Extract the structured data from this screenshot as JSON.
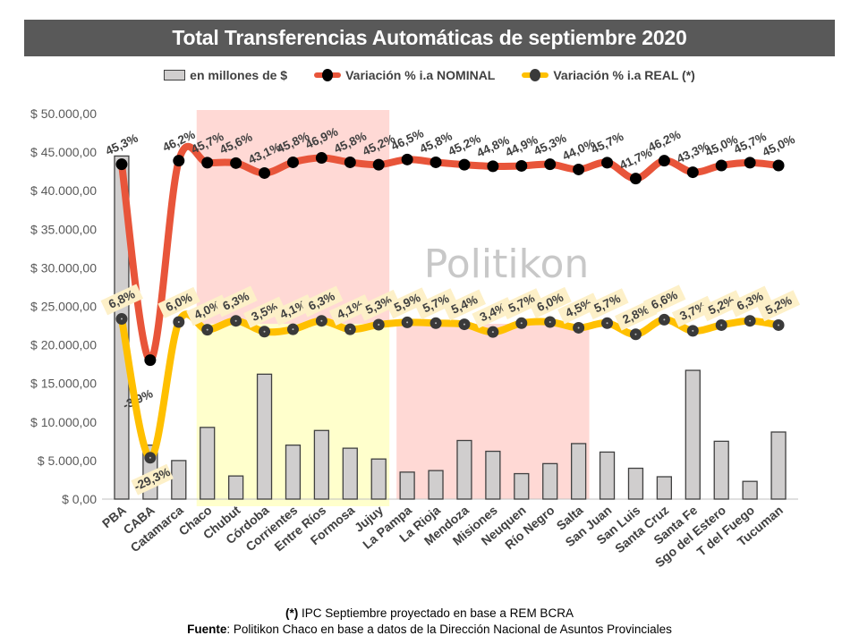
{
  "title": "Total Transferencias Automáticas de septiembre 2020",
  "watermark": "Politikon",
  "legend": [
    {
      "label": "en millones de $",
      "kind": "bar",
      "color": "#d0cece"
    },
    {
      "label": "Variación % i.a NOMINAL",
      "kind": "line",
      "color": "#e8553a",
      "marker": "#000000"
    },
    {
      "label": "Variación % i.a REAL (*)",
      "kind": "line",
      "color": "#ffc000",
      "marker": "#3a3a3a"
    }
  ],
  "footer": {
    "note_bold": "(*)",
    "note_text": " IPC Septiembre proyectado en base a REM BCRA",
    "source_bold": "Fuente",
    "source_text": ": Politikon Chaco en base a datos de la Dirección Nacional de Asuntos Provinciales"
  },
  "chart_data": {
    "type": "bar",
    "title": "Total Transferencias Automáticas de septiembre 2020",
    "xlabel": "",
    "ylabel": "",
    "ylim": [
      0,
      50000
    ],
    "yticks": [
      0,
      5000,
      10000,
      15000,
      20000,
      25000,
      30000,
      35000,
      40000,
      45000,
      50000
    ],
    "ytick_labels": [
      "$ 0,00",
      "$ 5.000,00",
      "$ 10.000,00",
      "$ 15.000,00",
      "$ 20.000,00",
      "$ 25.000,00",
      "$ 30.000,00",
      "$ 35.000,00",
      "$ 40.000,00",
      "$ 45.000,00",
      "$ 50.000,00"
    ],
    "grid": false,
    "legend_position": "top",
    "categories": [
      "PBA",
      "CABA",
      "Catamarca",
      "Chaco",
      "Chubut",
      "Córdoba",
      "Corrientes",
      "Entre Ríos",
      "Formosa",
      "Jujuy",
      "La Pampa",
      "La Rioja",
      "Mendoza",
      "Misiones",
      "Neuquen",
      "Río Negro",
      "Salta",
      "San Juan",
      "San Luis",
      "Santa Cruz",
      "Santa Fe",
      "Sgo del Estero",
      "T del Fuego",
      "Tucuman"
    ],
    "series": [
      {
        "name": "en millones de $",
        "type": "bar",
        "axis": "left",
        "values": [
          44500,
          7000,
          5000,
          9300,
          3000,
          16200,
          7000,
          8900,
          6600,
          5200,
          3500,
          3700,
          7600,
          6200,
          3300,
          4600,
          7200,
          6100,
          4000,
          2900,
          16700,
          7500,
          2300,
          8700
        ]
      },
      {
        "name": "Variación % i.a NOMINAL",
        "type": "line",
        "axis": "secondary",
        "values": [
          45.3,
          -3.9,
          46.2,
          45.7,
          45.6,
          43.1,
          45.8,
          46.9,
          45.8,
          45.2,
          46.5,
          45.8,
          45.2,
          44.8,
          44.9,
          45.3,
          44.0,
          45.7,
          41.7,
          46.2,
          43.3,
          45.0,
          45.7,
          45.0
        ],
        "labels": [
          "45,3%",
          "-3,9%",
          "46,2%",
          "45,7%",
          "45,6%",
          "43,1%",
          "45,8%",
          "46,9%",
          "45,8%",
          "45,2%",
          "46,5%",
          "45,8%",
          "45,2%",
          "44,8%",
          "44,9%",
          "45,3%",
          "44,0%",
          "45,7%",
          "41,7%",
          "46,2%",
          "43,3%",
          "45,0%",
          "45,7%",
          "45,0%"
        ]
      },
      {
        "name": "Variación % i.a REAL (*)",
        "type": "line",
        "axis": "secondary",
        "values": [
          6.8,
          -29.3,
          6.0,
          4.0,
          6.3,
          3.5,
          4.1,
          6.3,
          4.1,
          5.3,
          5.9,
          5.7,
          5.4,
          3.4,
          5.7,
          6.0,
          4.5,
          5.7,
          2.8,
          6.6,
          3.7,
          5.2,
          6.3,
          5.2
        ],
        "labels": [
          "6,8%",
          "-29,3%",
          "6,0%",
          "4,0%",
          "6,3%",
          "3,5%",
          "4,1%",
          "6,3%",
          "4,1%",
          "5,3%",
          "5,9%",
          "5,7%",
          "5,4%",
          "3,4%",
          "5,7%",
          "6,0%",
          "4,5%",
          "5,7%",
          "2,8%",
          "6,6%",
          "3,7%",
          "5,2%",
          "6,3%",
          "5,2%"
        ]
      }
    ],
    "highlight_bands": [
      {
        "from": "Chaco",
        "to": "Jujuy",
        "region": "upper",
        "color": "#ffd9d5"
      },
      {
        "from": "Chaco",
        "to": "Jujuy",
        "region": "lower",
        "color": "#ffffcc"
      },
      {
        "from": "La Pampa",
        "to": "Salta",
        "region": "lower",
        "color": "#ffd9d5"
      }
    ]
  }
}
